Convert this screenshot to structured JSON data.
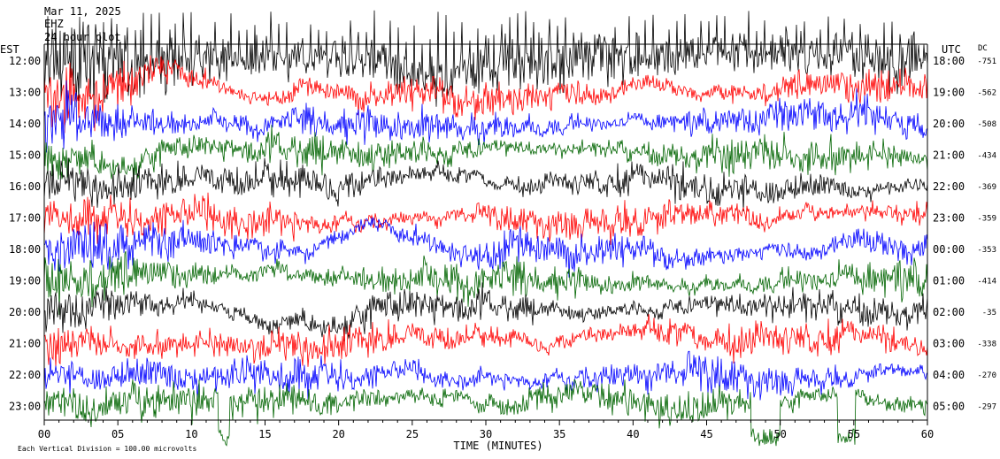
{
  "header": {
    "line1": "Mar 11, 2025",
    "line2": "EHZ",
    "line3": "24 hour plot"
  },
  "chart_data": {
    "type": "line",
    "title": "",
    "xlabel": "TIME (MINUTES)",
    "x_ticks": [
      "00",
      "05",
      "10",
      "15",
      "20",
      "25",
      "30",
      "35",
      "40",
      "45",
      "50",
      "55",
      "60"
    ],
    "xlim": [
      0,
      60
    ],
    "left_axis_label": "EST",
    "right_axis_label": "UTC",
    "dc_label": "DC",
    "footer_note": "Each Vertical Division = 100.00 microvolts",
    "rows": [
      {
        "est": "12:00",
        "utc": "18:00",
        "dc": "-751",
        "color": "#000000"
      },
      {
        "est": "13:00",
        "utc": "19:00",
        "dc": "-562",
        "color": "#ff0000"
      },
      {
        "est": "14:00",
        "utc": "20:00",
        "dc": "-508",
        "color": "#0000ff"
      },
      {
        "est": "15:00",
        "utc": "21:00",
        "dc": "-434",
        "color": "#006400"
      },
      {
        "est": "16:00",
        "utc": "22:00",
        "dc": "-369",
        "color": "#000000"
      },
      {
        "est": "17:00",
        "utc": "23:00",
        "dc": "-359",
        "color": "#ff0000"
      },
      {
        "est": "18:00",
        "utc": "00:00",
        "dc": "-353",
        "color": "#0000ff"
      },
      {
        "est": "19:00",
        "utc": "01:00",
        "dc": "-414",
        "color": "#006400"
      },
      {
        "est": "20:00",
        "utc": "02:00",
        "dc": "-35",
        "color": "#000000"
      },
      {
        "est": "21:00",
        "utc": "03:00",
        "dc": "-338",
        "color": "#ff0000"
      },
      {
        "est": "22:00",
        "utc": "04:00",
        "dc": "-270",
        "color": "#0000ff"
      },
      {
        "est": "23:00",
        "utc": "05:00",
        "dc": "-297",
        "color": "#006400"
      }
    ]
  }
}
